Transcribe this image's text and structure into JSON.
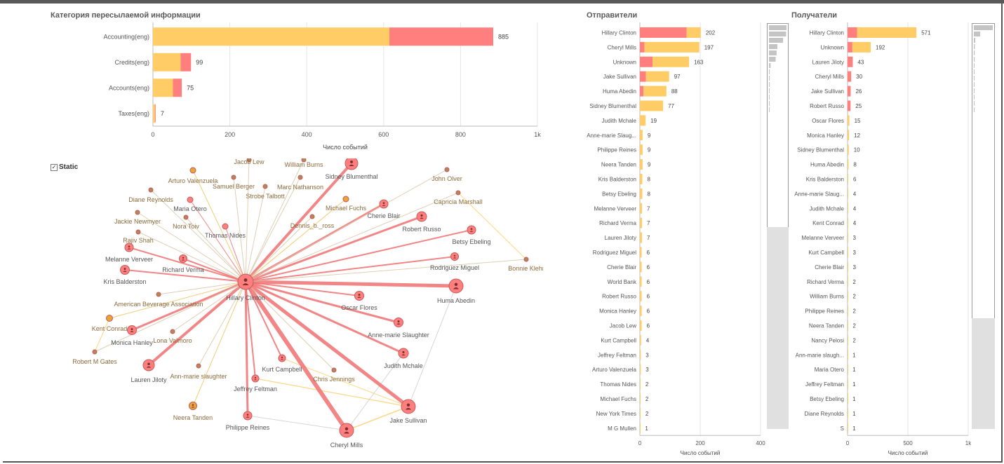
{
  "colors": {
    "yellow": "#ffcc66",
    "red": "#ff7f7f",
    "node_yellow": "#e8a33a",
    "node_brown": "#b4875a",
    "grid": "#e5e5e5",
    "axis": "#bbbbbb"
  },
  "category_panel": {
    "title": "Категория пересылаемой информации",
    "static_label": "Static"
  },
  "category_chart": {
    "type": "bar",
    "xlabel": "Число событий",
    "xlim": [
      0,
      1000
    ],
    "ticks": [
      {
        "v": 0,
        "label": "0"
      },
      {
        "v": 200,
        "label": "200"
      },
      {
        "v": 400,
        "label": "400"
      },
      {
        "v": 600,
        "label": "600"
      },
      {
        "v": 800,
        "label": "800"
      },
      {
        "v": 1000,
        "label": "1k"
      }
    ],
    "categories": [
      "Accounting(eng)",
      "Credits(eng)",
      "Accounts(eng)",
      "Taxes(eng)"
    ],
    "series": [
      {
        "name": "yellow",
        "values": [
          615,
          72,
          52,
          5
        ]
      },
      {
        "name": "red",
        "values": [
          270,
          27,
          23,
          2
        ]
      }
    ],
    "totals": [
      "885",
      "99",
      "75",
      "7"
    ]
  },
  "senders_panel": {
    "title": "Отправители"
  },
  "senders_chart": {
    "type": "bar",
    "xlabel": "Число событий",
    "xlim": [
      0,
      400
    ],
    "ticks": [
      {
        "v": 0,
        "label": "0"
      },
      {
        "v": 200,
        "label": "200"
      },
      {
        "v": 400,
        "label": "400"
      }
    ],
    "categories": [
      "Hillary Clinton",
      "Cheryl Mills",
      "Unknown",
      "Jake Sullivan",
      "Huma Abedin",
      "Sidney Blumenthal",
      "Judith Mchale",
      "Anne-marie Slaug...",
      "Philippe Reines",
      "Neera Tanden",
      "Kris Balderston",
      "Betsy Ebeling",
      "Melanne Verveer",
      "Richard Verma",
      "Lauren Jiloty",
      "Rodriguez Miguel",
      "Cherie Blair",
      "World Bank",
      "Robert Russo",
      "Monica Hanley",
      "Jacob Lew",
      "Kurt Campbell",
      "Jeffrey Feltman",
      "Arturo Valenzuela",
      "Thomas Nides",
      "Michael Fuchs",
      "New York Times",
      "M G Mullen"
    ],
    "series": [
      {
        "name": "red",
        "values": [
          155,
          15,
          42,
          20,
          12,
          0,
          0,
          0,
          0,
          0,
          0,
          0,
          0,
          0,
          0,
          0,
          0,
          0,
          0,
          0,
          0,
          0,
          0,
          0,
          0,
          0,
          0,
          0
        ]
      },
      {
        "name": "yellow",
        "values": [
          47,
          182,
          121,
          77,
          76,
          77,
          19,
          9,
          9,
          9,
          8,
          8,
          7,
          7,
          7,
          6,
          6,
          6,
          6,
          6,
          6,
          4,
          3,
          3,
          2,
          2,
          2,
          1
        ]
      }
    ],
    "totals": [
      "202",
      "197",
      "163",
      "97",
      "88",
      "77",
      "19",
      "9",
      "9",
      "9",
      "8",
      "8",
      "7",
      "7",
      "7",
      "6",
      "6",
      "6",
      "6",
      "6",
      "6",
      "4",
      "3",
      "3",
      "2",
      "2",
      "2",
      "1"
    ]
  },
  "receivers_panel": {
    "title": "Получатели"
  },
  "receivers_chart": {
    "type": "bar",
    "xlabel": "Число событий",
    "xlim": [
      0,
      1000
    ],
    "ticks": [
      {
        "v": 0,
        "label": "0"
      },
      {
        "v": 500,
        "label": "500"
      },
      {
        "v": 1000,
        "label": "1k"
      }
    ],
    "categories": [
      "Hillary Clinton",
      "Unknown",
      "Lauren Jiloty",
      "Cheryl Mills",
      "Jake Sullivan",
      "Robert Russo",
      "Oscar Flores",
      "Monica Hanley",
      "Sidney Blumenthal",
      "Huma Abedin",
      "Kris Balderston",
      "Anne-marie Slaug...",
      "Judith Mchale",
      "Kent Conrad",
      "Melanne Verveer",
      "Kurt Campbell",
      "Cherie Blair",
      "Richard Verma",
      "William Burns",
      "Philippe Reines",
      "Neera Tanden",
      "Nancy Pelosi",
      "Ann-marie slaugh...",
      "Maria Otero",
      "Jeffrey Feltman",
      "Betsy Ebeling",
      "Diane Reynolds",
      "S"
    ],
    "series": [
      {
        "name": "red",
        "values": [
          80,
          40,
          43,
          30,
          26,
          25,
          0,
          0,
          0,
          0,
          0,
          0,
          0,
          0,
          0,
          0,
          0,
          0,
          0,
          0,
          0,
          0,
          0,
          0,
          0,
          0,
          0,
          0
        ]
      },
      {
        "name": "yellow",
        "values": [
          491,
          152,
          0,
          0,
          0,
          0,
          15,
          12,
          10,
          8,
          6,
          4,
          4,
          4,
          3,
          3,
          3,
          2,
          2,
          2,
          2,
          2,
          1,
          1,
          1,
          1,
          1,
          1
        ]
      }
    ],
    "totals": [
      "571",
      "192",
      "43",
      "30",
      "26",
      "25",
      "15",
      "12",
      "10",
      "8",
      "6",
      "4",
      "4",
      "4",
      "3",
      "3",
      "3",
      "2",
      "2",
      "2",
      "2",
      "2",
      "1",
      "1",
      "1",
      "1",
      "1",
      "1"
    ]
  },
  "network": {
    "center": {
      "name": "Hillary Clinton"
    },
    "nodes": [
      {
        "name": "Cheryl Mills",
        "kind": "red",
        "w": 6
      },
      {
        "name": "Jake Sullivan",
        "kind": "red",
        "w": 5
      },
      {
        "name": "Huma Abedin",
        "kind": "red",
        "w": 5
      },
      {
        "name": "Sidney Blumenthal",
        "kind": "red",
        "w": 4
      },
      {
        "name": "Robert Russo",
        "kind": "red",
        "w": 3
      },
      {
        "name": "Cherie Blair",
        "kind": "red",
        "w": 3
      },
      {
        "name": "Betsy Ebeling",
        "kind": "red",
        "w": 2
      },
      {
        "name": "Rodriguez Miguel",
        "kind": "red",
        "w": 2
      },
      {
        "name": "Oscar Flores",
        "kind": "red",
        "w": 2
      },
      {
        "name": "Anne-marie Slaughter",
        "kind": "red",
        "w": 3
      },
      {
        "name": "Judith Mchale",
        "kind": "red",
        "w": 3
      },
      {
        "name": "Kurt Campbell",
        "kind": "red",
        "w": 2
      },
      {
        "name": "Philippe Reines",
        "kind": "red",
        "w": 3
      },
      {
        "name": "Jeffrey Feltman",
        "kind": "red",
        "w": 2
      },
      {
        "name": "Lauren Jiloty",
        "kind": "red",
        "w": 4
      },
      {
        "name": "Monica Hanley",
        "kind": "red",
        "w": 3
      },
      {
        "name": "Kris Balderston",
        "kind": "red",
        "w": 2
      },
      {
        "name": "Melanne Verveer",
        "kind": "red",
        "w": 2
      },
      {
        "name": "Richard Verma",
        "kind": "red",
        "w": 2
      },
      {
        "name": "Thomas Nides",
        "kind": "red",
        "w": 1
      },
      {
        "name": "Maria Otero",
        "kind": "red",
        "w": 1
      },
      {
        "name": "Rajiv Shah",
        "kind": "brown",
        "w": 1
      },
      {
        "name": "Jackie Newmyer",
        "kind": "brown",
        "w": 1
      },
      {
        "name": "Diane Reynolds",
        "kind": "brown",
        "w": 1
      },
      {
        "name": "Nora Toiv",
        "kind": "brown",
        "w": 1
      },
      {
        "name": "Arturo Valenzuela",
        "kind": "yellow",
        "w": 1
      },
      {
        "name": "Samuel Berger",
        "kind": "brown",
        "w": 1
      },
      {
        "name": "Jacob Lew",
        "kind": "brown",
        "w": 1
      },
      {
        "name": "William Burns",
        "kind": "brown",
        "w": 1
      },
      {
        "name": "Marc Nathanson",
        "kind": "brown",
        "w": 1
      },
      {
        "name": "Strobe Talbott",
        "kind": "brown",
        "w": 1
      },
      {
        "name": "Michael Fuchs",
        "kind": "yellow",
        "w": 1
      },
      {
        "name": "Dennis_b._ross",
        "kind": "brown",
        "w": 1
      },
      {
        "name": "John Olver",
        "kind": "brown",
        "w": 1
      },
      {
        "name": "Capricia Marshall",
        "kind": "brown",
        "w": 1
      },
      {
        "name": "Bonnie Klehr",
        "kind": "brown",
        "w": 1
      },
      {
        "name": "American Beverage Association",
        "kind": "brown",
        "w": 1
      },
      {
        "name": "Kent Conrad",
        "kind": "yellow",
        "w": 1
      },
      {
        "name": "Robert M Gates",
        "kind": "brown",
        "w": 1
      },
      {
        "name": "Lona Valmoro",
        "kind": "brown",
        "w": 1
      },
      {
        "name": "Ann-marie slaughter",
        "kind": "brown",
        "w": 1
      },
      {
        "name": "Chris Jennings",
        "kind": "brown",
        "w": 1
      },
      {
        "name": "Neera Tanden",
        "kind": "yellow",
        "w": 1
      }
    ]
  }
}
